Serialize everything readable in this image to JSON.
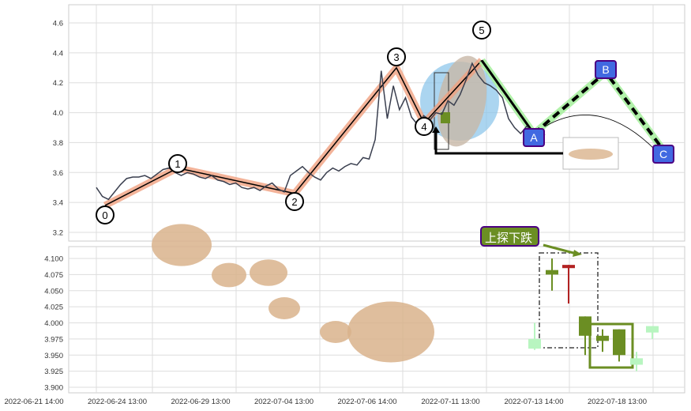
{
  "chart_data": [
    {
      "type": "line",
      "panel": "top",
      "ylim": [
        3.14,
        4.72
      ],
      "yticks": [
        "3.2",
        "3.4",
        "3.6",
        "3.8",
        "4.0",
        "4.2",
        "4.4",
        "4.6"
      ],
      "grid": true,
      "series": [
        {
          "values": [
            3.5,
            3.44,
            3.42,
            3.47,
            3.52,
            3.56,
            3.57,
            3.57,
            3.58,
            3.56,
            3.59,
            3.62,
            3.63,
            3.6,
            3.58,
            3.6,
            3.59,
            3.57,
            3.56,
            3.58,
            3.55,
            3.54,
            3.52,
            3.53,
            3.5,
            3.49,
            3.5,
            3.48,
            3.51,
            3.53,
            3.49,
            3.47,
            3.58,
            3.61,
            3.64,
            3.6,
            3.57,
            3.55,
            3.6,
            3.63,
            3.61,
            3.64,
            3.66,
            3.65,
            3.7,
            3.69,
            3.82,
            4.28,
            3.96,
            4.18,
            4.02,
            4.1,
            3.97,
            3.92,
            3.98,
            3.95,
            4.0,
            3.99,
            4.08,
            4.05,
            4.12,
            4.22,
            4.33,
            4.25,
            4.2,
            4.18,
            4.15,
            4.1,
            3.96,
            3.9,
            3.86,
            3.91,
            3.87,
            3.88,
            3.85
          ]
        }
      ],
      "wave_points": [
        {
          "label": "0",
          "value": 3.38
        },
        {
          "label": "1",
          "value": 3.63
        },
        {
          "label": "2",
          "value": 3.46
        },
        {
          "label": "3",
          "value": 4.3
        },
        {
          "label": "4",
          "value": 3.93
        },
        {
          "label": "5",
          "value": 4.35
        }
      ],
      "abc_points": [
        {
          "label": "A",
          "value": 3.86
        },
        {
          "label": "B",
          "value": 4.27
        },
        {
          "label": "C",
          "value": 3.75
        }
      ]
    },
    {
      "type": "candlestick",
      "panel": "bottom",
      "ylim": [
        3.893,
        4.11
      ],
      "yticks": [
        "3.900",
        "3.925",
        "3.950",
        "3.975",
        "4.000",
        "4.025",
        "4.050",
        "4.075",
        "4.100"
      ],
      "grid": true,
      "candles": [
        {
          "open": 3.96,
          "close": 3.975,
          "high": 4.0,
          "low": 3.958,
          "style": "faint"
        },
        {
          "open": 4.075,
          "close": 4.082,
          "high": 4.1,
          "low": 4.05,
          "style": "up"
        },
        {
          "open": 4.09,
          "close": 4.085,
          "high": 4.09,
          "low": 4.03,
          "style": "down"
        },
        {
          "open": 4.01,
          "close": 3.98,
          "high": 4.01,
          "low": 3.95,
          "style": "up"
        },
        {
          "open": 3.98,
          "close": 3.972,
          "high": 3.99,
          "low": 3.955,
          "style": "up"
        },
        {
          "open": 3.99,
          "close": 3.95,
          "high": 3.99,
          "low": 3.94,
          "style": "up"
        },
        {
          "open": 3.945,
          "close": 3.935,
          "high": 3.955,
          "low": 3.925,
          "style": "faint"
        },
        {
          "open": 3.995,
          "close": 3.985,
          "high": 3.995,
          "low": 3.975,
          "style": "faint"
        }
      ],
      "annotation": "上探下跌"
    }
  ],
  "xticks": [
    "2022-06-21 14:00",
    "2022-06-24 13:00",
    "2022-06-29 13:00",
    "2022-07-04 13:00",
    "2022-07-06 14:00",
    "2022-07-11 13:00",
    "2022-07-13 14:00",
    "2022-07-18 13:00"
  ],
  "colors": {
    "line": "#3a3f4f",
    "wave_band": "#f0a080",
    "abc_band": "#a8f0a0",
    "marker_fill": "#4169e1",
    "marker_border": "#4b0082",
    "up": "#6b8e23",
    "down": "#b22222",
    "faint": "#b8f5c0",
    "ellipse": "#87c3ea",
    "annotation_bg": "#6b8e23"
  }
}
